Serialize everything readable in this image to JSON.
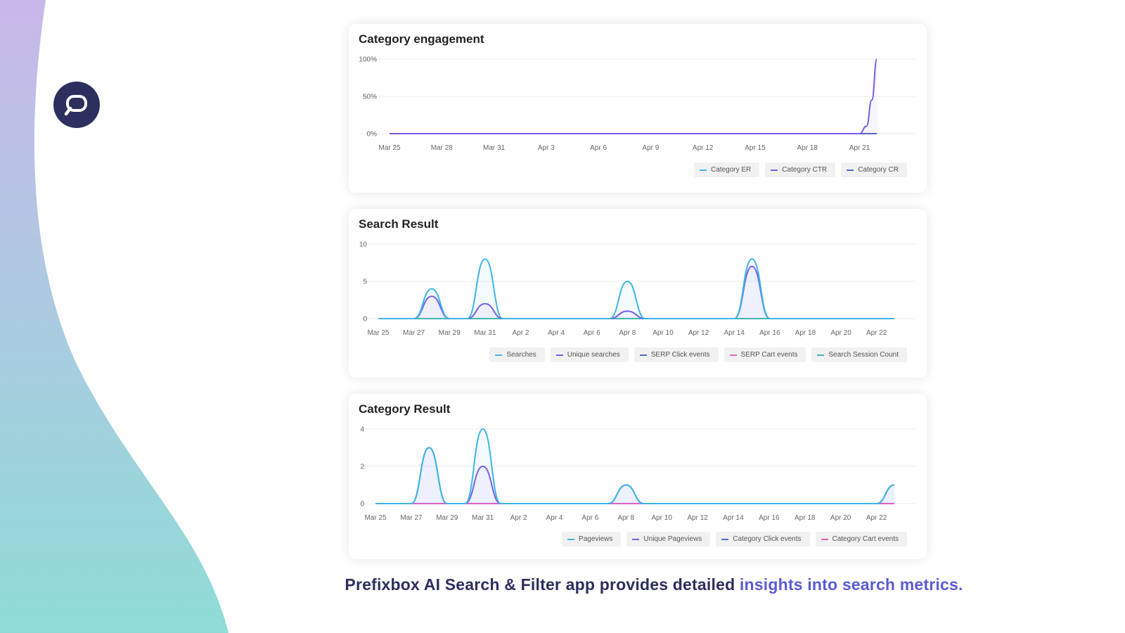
{
  "caption": {
    "text": "Prefixbox AI Search & Filter app provides detailed ",
    "highlight": "insights into search metrics."
  },
  "logo": {
    "icon": "chat-search-icon"
  },
  "colors": {
    "navy": "#2d2f5e",
    "accent": "#5b5bd6",
    "cyan": "#3cb6e6",
    "purple": "#7a5ce8",
    "indigo": "#5468c8",
    "pink": "#e061c4",
    "teal": "#3fb8b3"
  },
  "chart_data": [
    {
      "type": "line",
      "title": "Category engagement",
      "x": [
        "Mar 25",
        "Mar 28",
        "Mar 31",
        "Apr 3",
        "Apr 6",
        "Apr 9",
        "Apr 12",
        "Apr 15",
        "Apr 18",
        "Apr 21"
      ],
      "yticks": [
        "0%",
        "50%",
        "100%"
      ],
      "ylim": [
        0,
        100
      ],
      "series": [
        {
          "name": "Category ER",
          "color": "#3cb6e6",
          "points": [
            [
              0,
              0
            ],
            [
              28,
              0
            ]
          ]
        },
        {
          "name": "Category CTR",
          "color": "#7a5ce8",
          "points": [
            [
              0,
              0
            ],
            [
              27,
              0
            ],
            [
              27.4,
              10
            ],
            [
              27.7,
              45
            ],
            [
              28,
              100
            ]
          ]
        },
        {
          "name": "Category CR",
          "color": "#5468c8",
          "points": [
            [
              0,
              0
            ],
            [
              28,
              0
            ]
          ]
        }
      ],
      "legend": "bottom-right",
      "grid": true
    },
    {
      "type": "line",
      "title": "Search Result",
      "x": [
        "Mar 25",
        "Mar 27",
        "Mar 29",
        "Mar 31",
        "Apr 2",
        "Apr 4",
        "Apr 6",
        "Apr 8",
        "Apr 10",
        "Apr 12",
        "Apr 14",
        "Apr 16",
        "Apr 18",
        "Apr 20",
        "Apr 22"
      ],
      "yticks": [
        "0",
        "5",
        "10"
      ],
      "ylim": [
        0,
        10
      ],
      "series": [
        {
          "name": "Searches",
          "color": "#3cb6e6",
          "points": [
            [
              0,
              0
            ],
            [
              2,
              0
            ],
            [
              3,
              4
            ],
            [
              4,
              0
            ],
            [
              5,
              0
            ],
            [
              6,
              8
            ],
            [
              7,
              0
            ],
            [
              13,
              0
            ],
            [
              14,
              5
            ],
            [
              15,
              0
            ],
            [
              20,
              0
            ],
            [
              21,
              8
            ],
            [
              22,
              0
            ],
            [
              29,
              0
            ]
          ]
        },
        {
          "name": "Unique searches",
          "color": "#7a5ce8",
          "points": [
            [
              0,
              0
            ],
            [
              2,
              0
            ],
            [
              3,
              3
            ],
            [
              4,
              0
            ],
            [
              5,
              0
            ],
            [
              6,
              2
            ],
            [
              7,
              0
            ],
            [
              13,
              0
            ],
            [
              14,
              1
            ],
            [
              15,
              0
            ],
            [
              20,
              0
            ],
            [
              21,
              7
            ],
            [
              22,
              0
            ],
            [
              29,
              0
            ]
          ]
        },
        {
          "name": "SERP Click events",
          "color": "#5468c8",
          "points": [
            [
              0,
              0
            ],
            [
              29,
              0
            ]
          ]
        },
        {
          "name": "SERP Cart events",
          "color": "#e061c4",
          "points": [
            [
              0,
              0
            ],
            [
              29,
              0
            ]
          ]
        },
        {
          "name": "Search Session Count",
          "color": "#3fb8b3",
          "points": [
            [
              0,
              0
            ],
            [
              29,
              0
            ]
          ]
        }
      ],
      "legend": "bottom-right",
      "grid": true
    },
    {
      "type": "line",
      "title": "Category Result",
      "x": [
        "Mar 25",
        "Mar 27",
        "Mar 29",
        "Mar 31",
        "Apr 2",
        "Apr 4",
        "Apr 6",
        "Apr 8",
        "Apr 10",
        "Apr 12",
        "Apr 14",
        "Apr 16",
        "Apr 18",
        "Apr 20",
        "Apr 22"
      ],
      "yticks": [
        "0",
        "2",
        "4"
      ],
      "ylim": [
        0,
        4
      ],
      "series": [
        {
          "name": "Pageviews",
          "color": "#3cb6e6",
          "points": [
            [
              0,
              0
            ],
            [
              2,
              0
            ],
            [
              3,
              3
            ],
            [
              4,
              0
            ],
            [
              5,
              0
            ],
            [
              6,
              4
            ],
            [
              7,
              0
            ],
            [
              13,
              0
            ],
            [
              14,
              1
            ],
            [
              15,
              0
            ],
            [
              28,
              0
            ],
            [
              29,
              1
            ]
          ]
        },
        {
          "name": "Unique Pageviews",
          "color": "#7a5ce8",
          "points": [
            [
              0,
              0
            ],
            [
              2,
              0
            ],
            [
              3,
              3
            ],
            [
              4,
              0
            ],
            [
              5,
              0
            ],
            [
              6,
              2
            ],
            [
              7,
              0
            ],
            [
              13,
              0
            ],
            [
              14,
              1
            ],
            [
              15,
              0
            ],
            [
              28,
              0
            ],
            [
              29,
              1
            ]
          ]
        },
        {
          "name": "Category Click events",
          "color": "#5468c8",
          "points": [
            [
              0,
              0
            ],
            [
              29,
              0
            ]
          ]
        },
        {
          "name": "Category Cart events",
          "color": "#e061c4",
          "points": [
            [
              0,
              0
            ],
            [
              29,
              0
            ]
          ]
        }
      ],
      "legend": "bottom-right",
      "grid": true
    }
  ]
}
